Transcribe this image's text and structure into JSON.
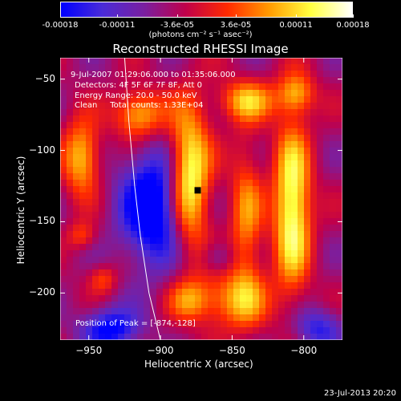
{
  "colorbar": {
    "ticks": [
      "-0.00018",
      "-0.00011",
      "-3.6e-05",
      "3.6e-05",
      "0.00011",
      "0.00018"
    ],
    "tick_values": [
      -0.00018,
      -0.00011,
      -3.6e-05,
      3.6e-05,
      0.00011,
      0.00018
    ],
    "range": [
      -0.00018,
      0.00018
    ],
    "label": "(photons cm⁻² s⁻¹ asec⁻²)",
    "colors": [
      "#0000ff",
      "#4a2bd8",
      "#7a1fa0",
      "#c0004a",
      "#ff2a00",
      "#ff9a00",
      "#ffff40",
      "#ffffff"
    ]
  },
  "chart_data": {
    "type": "heatmap",
    "title": "Reconstructed RHESSI Image",
    "xlabel": "Heliocentric X (arcsec)",
    "ylabel": "Heliocentric Y (arcsec)",
    "xlim": [
      -970,
      -773
    ],
    "ylim": [
      -233,
      -35
    ],
    "xticks": [
      -950,
      -900,
      -850,
      -800
    ],
    "xtick_labels": [
      "−950",
      "−900",
      "−850",
      "−800"
    ],
    "yticks": [
      -50,
      -100,
      -150,
      -200
    ],
    "ytick_labels": [
      "−50",
      "−100",
      "−150",
      "−200"
    ],
    "annotations": {
      "time": "9-Jul-2007 01:29:06.000 to 01:35:06.000",
      "detectors": "Detectors: 4F 5F 6F 7F 8F, Att 0",
      "energy": "Energy Range: 20.0 - 50.0 keV",
      "method": "Clean     Total counts: 1.33E+04",
      "peak": "Position of Peak = [-874,-128]"
    },
    "peak_position": [
      -874,
      -128
    ],
    "limb_points": [
      [
        -925,
        -35
      ],
      [
        -922,
        -80
      ],
      [
        -918,
        -125
      ],
      [
        -914,
        -160
      ],
      [
        -908,
        -200
      ],
      [
        -900,
        -233
      ]
    ],
    "blobs": [
      {
        "x": -880,
        "y": -120,
        "sx": 10,
        "sy": 35,
        "amp": 1.0
      },
      {
        "x": -808,
        "y": -140,
        "sx": 9,
        "sy": 40,
        "amp": 0.95
      },
      {
        "x": -955,
        "y": -105,
        "sx": 9,
        "sy": 18,
        "amp": 0.7
      },
      {
        "x": -915,
        "y": -75,
        "sx": 12,
        "sy": 12,
        "amp": 0.7
      },
      {
        "x": -840,
        "y": -65,
        "sx": 14,
        "sy": 10,
        "amp": 0.6
      },
      {
        "x": -805,
        "y": -60,
        "sx": 9,
        "sy": 10,
        "amp": 0.55
      },
      {
        "x": -840,
        "y": -150,
        "sx": 8,
        "sy": 40,
        "amp": 0.5
      },
      {
        "x": -850,
        "y": -205,
        "sx": 18,
        "sy": 14,
        "amp": 0.55
      },
      {
        "x": -880,
        "y": -205,
        "sx": 10,
        "sy": 10,
        "amp": 0.4
      },
      {
        "x": -955,
        "y": -160,
        "sx": 7,
        "sy": 7,
        "amp": 0.35
      },
      {
        "x": -940,
        "y": -190,
        "sx": 7,
        "sy": 7,
        "amp": 0.35
      },
      {
        "x": -905,
        "y": -140,
        "sx": 16,
        "sy": 28,
        "amp": -0.9
      },
      {
        "x": -935,
        "y": -225,
        "sx": 14,
        "sy": 10,
        "amp": -0.7
      },
      {
        "x": -790,
        "y": -225,
        "sx": 12,
        "sy": 10,
        "amp": -0.5
      },
      {
        "x": -860,
        "y": -175,
        "sx": 8,
        "sy": 8,
        "amp": -0.3
      }
    ]
  },
  "timestamp": "23-Jul-2013 20:20"
}
